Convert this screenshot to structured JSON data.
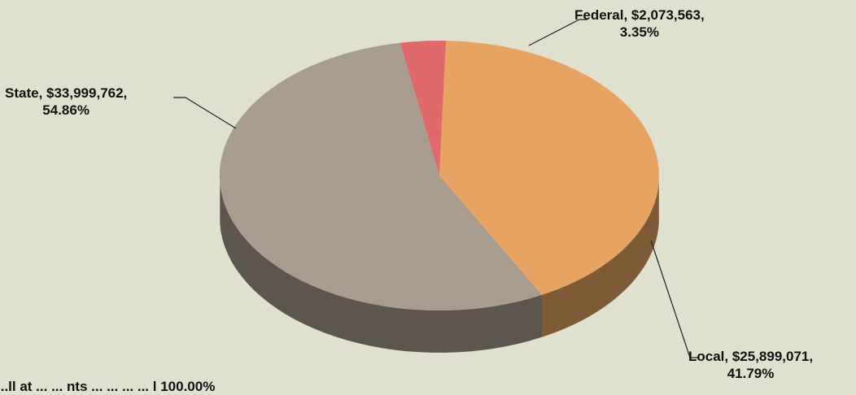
{
  "chart_data": {
    "type": "pie",
    "slices": [
      {
        "label": "Federal",
        "amount": 2073563,
        "amount_text": "$2,073,563",
        "percent": 3.35,
        "percent_text": "3.35%",
        "color": "#e06a6a"
      },
      {
        "label": "Local",
        "amount": 25899071,
        "amount_text": "$25,899,071",
        "percent": 41.79,
        "percent_text": "41.79%",
        "color": "#e6a362"
      },
      {
        "label": "State",
        "amount": 33999762,
        "amount_text": "$33,999,762",
        "percent": 54.86,
        "percent_text": "54.86%",
        "color": "#a89c8e"
      }
    ],
    "labels": {
      "federal": {
        "line1": "Federal, $2,073,563,",
        "line2": "3.35%"
      },
      "state": {
        "line1": "State, $33,999,762,",
        "line2": "54.86%"
      },
      "local": {
        "line1": "Local, $25,899,071,",
        "line2": "41.79%"
      }
    },
    "footnote": "...ll at ... ... nts ... ... ... ... l 100.00%"
  }
}
